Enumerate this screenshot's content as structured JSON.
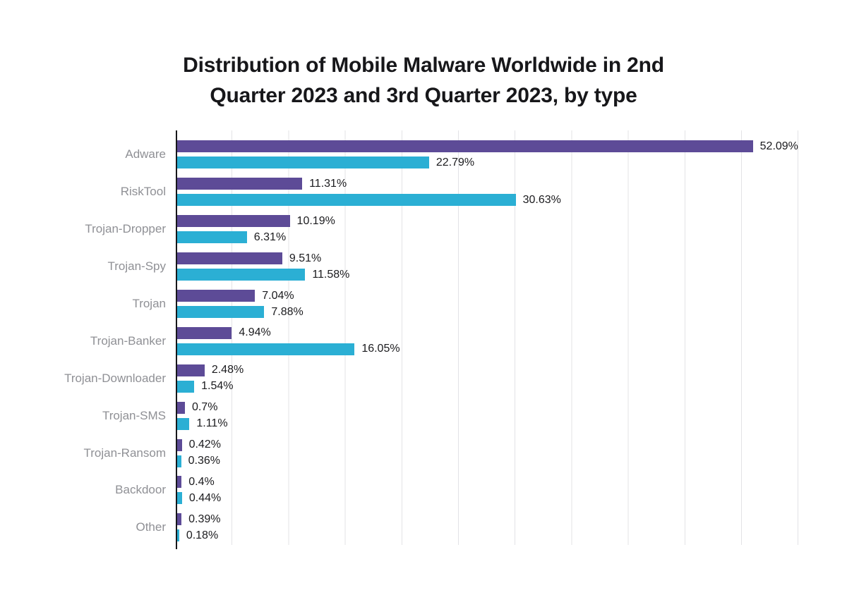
{
  "chart_data": {
    "type": "bar",
    "orientation": "horizontal",
    "title": "Distribution of Mobile Malware Worldwide in 2nd Quarter 2023 and 3rd Quarter 2023, by type",
    "title_lines": [
      "Distribution of Mobile Malware Worldwide in 2nd",
      "Quarter 2023 and 3rd Quarter 2023, by type"
    ],
    "categories": [
      "Adware",
      "RiskTool",
      "Trojan-Dropper",
      "Trojan-Spy",
      "Trojan",
      "Trojan-Banker",
      "Trojan-Downloader",
      "Trojan-SMS",
      "Trojan-Ransom",
      "Backdoor",
      "Other"
    ],
    "series": [
      {
        "name": "2nd Quarter 2023",
        "color": "#5d4b97",
        "values": [
          52.09,
          11.31,
          10.19,
          9.51,
          7.04,
          4.94,
          2.48,
          0.7,
          0.42,
          0.4,
          0.39
        ],
        "labels": [
          "52.09%",
          "11.31%",
          "10.19%",
          "9.51%",
          "7.04%",
          "4.94%",
          "2.48%",
          "0.7%",
          "0.42%",
          "0.4%",
          "0.39%"
        ]
      },
      {
        "name": "3rd Quarter 2023",
        "color": "#2bafd4",
        "values": [
          22.79,
          30.63,
          6.31,
          11.58,
          7.88,
          16.05,
          1.54,
          1.11,
          0.36,
          0.44,
          0.18
        ],
        "labels": [
          "22.79%",
          "30.63%",
          "6.31%",
          "11.58%",
          "7.88%",
          "16.05%",
          "1.54%",
          "1.11%",
          "0.36%",
          "0.44%",
          "0.18%"
        ]
      }
    ],
    "xlabel": "",
    "ylabel": "",
    "xlim": [
      0,
      56.2
    ],
    "grid": "vertical-light",
    "legend": "none",
    "value_label_suffix": "%"
  },
  "style": {
    "series_colors": [
      "#5d4b97",
      "#2bafd4"
    ],
    "grid_color": "#e3e3e6",
    "axis_color": "#17171a",
    "category_label_color": "#8f9095",
    "value_label_color": "#1b1b1e",
    "title_color": "#17171a",
    "background": "#ffffff"
  }
}
